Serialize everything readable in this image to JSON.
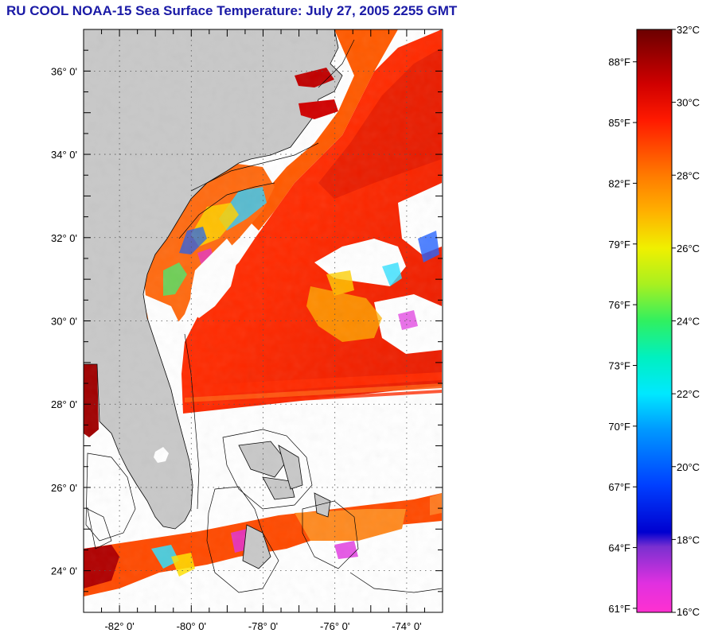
{
  "title": "RU COOL  NOAA-15  Sea Surface Temperature:  July 27, 2005 2255 GMT",
  "map": {
    "lon_range": [
      -83.0,
      -73.0
    ],
    "lat_range": [
      23.0,
      37.0
    ],
    "lat_ticks": [
      {
        "value": 36,
        "label": "36° 0'"
      },
      {
        "value": 34,
        "label": "34° 0'"
      },
      {
        "value": 32,
        "label": "32° 0'"
      },
      {
        "value": 30,
        "label": "30° 0'"
      },
      {
        "value": 28,
        "label": "28° 0'"
      },
      {
        "value": 26,
        "label": "26° 0'"
      },
      {
        "value": 24,
        "label": "24° 0'"
      }
    ],
    "lon_ticks": [
      {
        "value": -82,
        "label": "-82° 0'"
      },
      {
        "value": -80,
        "label": "-80° 0'"
      },
      {
        "value": -78,
        "label": "-78° 0'"
      },
      {
        "value": -76,
        "label": "-76° 0'"
      },
      {
        "value": -74,
        "label": "-74° 0'"
      }
    ],
    "grid": "dotted",
    "colors": {
      "land": "#c8c8c8",
      "cloud": "#ffffff",
      "coast": "#000000"
    }
  },
  "colorbar": {
    "range_c": [
      16,
      32
    ],
    "celsius_labels": [
      {
        "value": 32,
        "label": "32°C"
      },
      {
        "value": 30,
        "label": "30°C"
      },
      {
        "value": 28,
        "label": "28°C"
      },
      {
        "value": 26,
        "label": "26°C"
      },
      {
        "value": 24,
        "label": "24°C"
      },
      {
        "value": 22,
        "label": "22°C"
      },
      {
        "value": 20,
        "label": "20°C"
      },
      {
        "value": 18,
        "label": "18°C"
      },
      {
        "value": 16,
        "label": "16°C"
      }
    ],
    "fahrenheit_labels": [
      {
        "value": 88,
        "label": "88°F"
      },
      {
        "value": 85,
        "label": "85°F"
      },
      {
        "value": 82,
        "label": "82°F"
      },
      {
        "value": 79,
        "label": "79°F"
      },
      {
        "value": 76,
        "label": "76°F"
      },
      {
        "value": 73,
        "label": "73°F"
      },
      {
        "value": 70,
        "label": "70°F"
      },
      {
        "value": 67,
        "label": "67°F"
      },
      {
        "value": 64,
        "label": "64°F"
      },
      {
        "value": 61,
        "label": "61°F"
      }
    ],
    "stops": [
      {
        "c": 32,
        "color": "#6b0000"
      },
      {
        "c": 30.5,
        "color": "#d00000"
      },
      {
        "c": 29.5,
        "color": "#ff1a00"
      },
      {
        "c": 28,
        "color": "#ff7a00"
      },
      {
        "c": 27,
        "color": "#ffb000"
      },
      {
        "c": 26,
        "color": "#f0f000"
      },
      {
        "c": 25,
        "color": "#a8f020"
      },
      {
        "c": 24,
        "color": "#30f060"
      },
      {
        "c": 23,
        "color": "#00f0c0"
      },
      {
        "c": 22,
        "color": "#00e8ff"
      },
      {
        "c": 21,
        "color": "#0098ff"
      },
      {
        "c": 19.5,
        "color": "#0040ff"
      },
      {
        "c": 18.2,
        "color": "#0000d0"
      },
      {
        "c": 17.8,
        "color": "#7a30d0"
      },
      {
        "c": 16.8,
        "color": "#e030e0"
      },
      {
        "c": 16,
        "color": "#ff30d0"
      }
    ]
  }
}
